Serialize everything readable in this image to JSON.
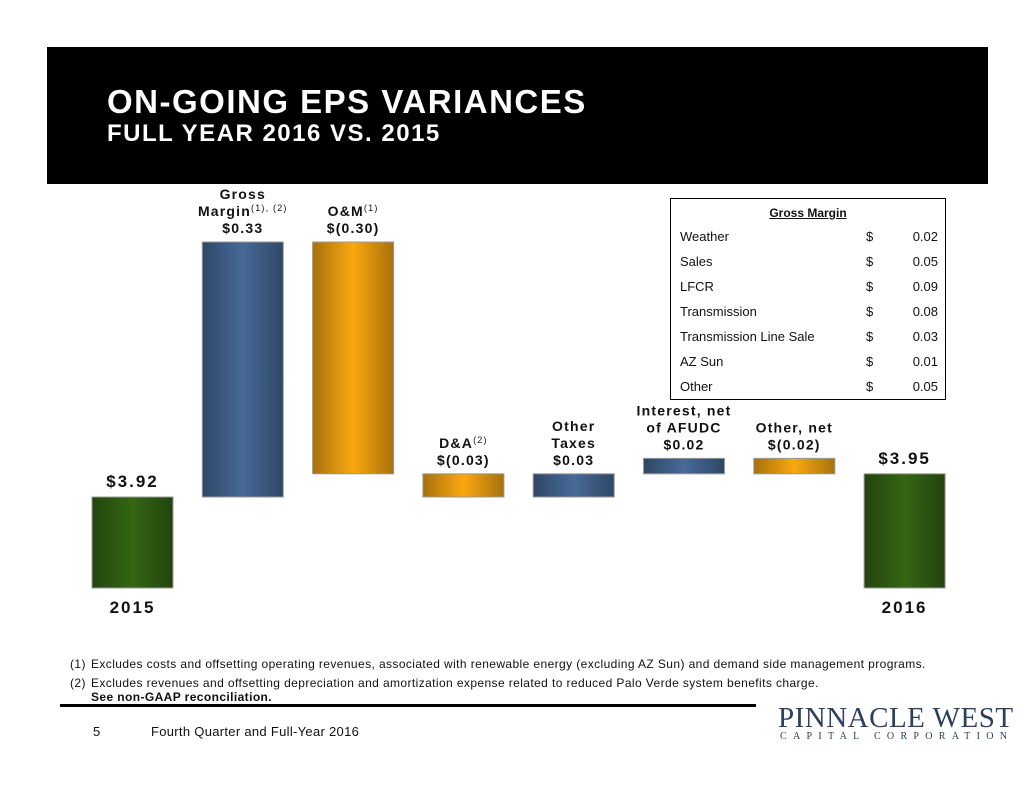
{
  "header": {
    "title": "ON-GOING EPS VARIANCES",
    "subtitle": "FULL YEAR 2016 VS. 2015"
  },
  "colors": {
    "total": "#2e5b12",
    "positive": "#3f5f88",
    "negative": "#e0960e"
  },
  "chart_data": {
    "type": "bar",
    "subtype": "waterfall",
    "categories": [
      "2015",
      "Gross Margin",
      "O&M",
      "D&A",
      "Other Taxes",
      "Interest, net of AFUDC",
      "Other, net",
      "2016"
    ],
    "values": [
      3.92,
      0.33,
      -0.3,
      -0.03,
      0.03,
      0.02,
      -0.02,
      3.95
    ],
    "bars": [
      {
        "kind": "total",
        "value": 3.92,
        "label": "$3.92",
        "category_label": "2015"
      },
      {
        "kind": "change",
        "value": 0.33,
        "name_lines": [
          "Gross",
          "Margin"
        ],
        "sup": "(1), (2)",
        "label": "$0.33"
      },
      {
        "kind": "change",
        "value": -0.3,
        "name_lines": [
          "O&M"
        ],
        "sup": "(1)",
        "label": "$(0.30)"
      },
      {
        "kind": "change",
        "value": -0.03,
        "name_lines": [
          "D&A"
        ],
        "sup": "(2)",
        "label": "$(0.03)"
      },
      {
        "kind": "change",
        "value": 0.03,
        "name_lines": [
          "Other",
          "Taxes"
        ],
        "sup": "",
        "label": "$0.03"
      },
      {
        "kind": "change",
        "value": 0.02,
        "name_lines": [
          "Interest, net",
          "of AFUDC"
        ],
        "sup": "",
        "label": "$0.02"
      },
      {
        "kind": "change",
        "value": -0.02,
        "name_lines": [
          "Other, net"
        ],
        "sup": "",
        "label": "$(0.02)"
      },
      {
        "kind": "total",
        "value": 3.95,
        "label": "$3.95",
        "category_label": "2016"
      }
    ],
    "title": "",
    "xlabel": "",
    "ylabel": "",
    "grid": false,
    "legend": "none"
  },
  "gross_margin_table": {
    "title": "Gross Margin",
    "currency": "$",
    "rows": [
      {
        "label": "Weather",
        "value": "0.02"
      },
      {
        "label": "Sales",
        "value": "0.05"
      },
      {
        "label": "LFCR",
        "value": "0.09"
      },
      {
        "label": "Transmission",
        "value": "0.08"
      },
      {
        "label": "Transmission Line Sale",
        "value": "0.03"
      },
      {
        "label": "AZ Sun",
        "value": "0.01"
      },
      {
        "label": "Other",
        "value": "0.05"
      }
    ]
  },
  "footnotes": [
    {
      "num": "(1)",
      "text": "Excludes costs and offsetting operating revenues, associated with renewable energy (excluding AZ Sun) and demand side management programs."
    },
    {
      "num": "(2)",
      "text": "Excludes revenues and offsetting depreciation and amortization expense related to reduced Palo Verde system benefits charge."
    }
  ],
  "footnote_bold": "See non-GAAP reconciliation.",
  "footer": {
    "page_number": "5",
    "text": "Fourth Quarter and Full-Year 2016"
  },
  "logo": {
    "name": "PINNACLE WEST",
    "tagline": "CAPITAL CORPORATION"
  }
}
